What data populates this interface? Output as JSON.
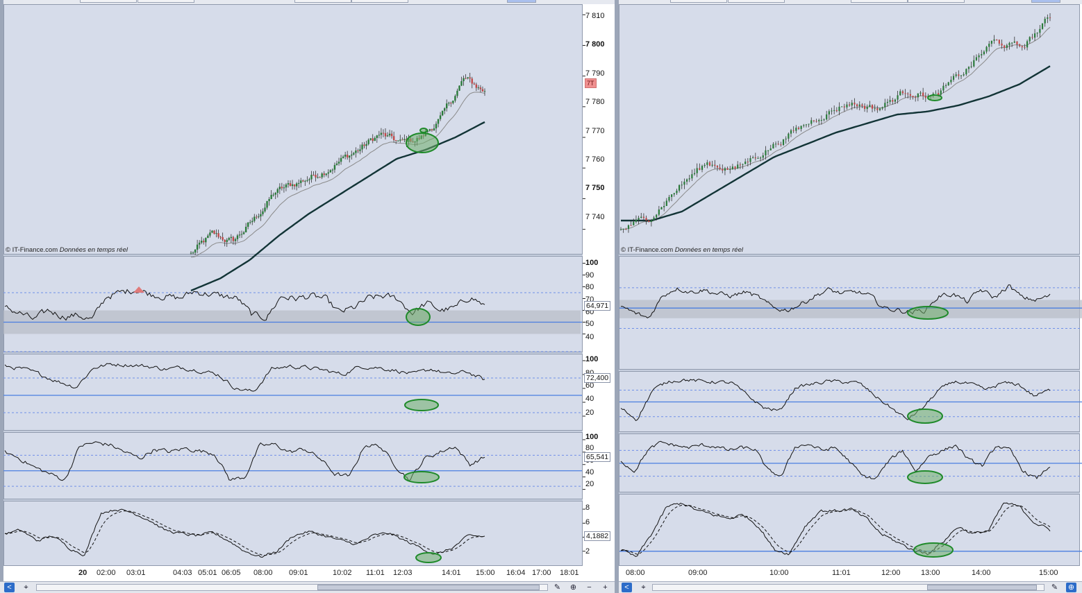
{
  "credit": {
    "brand": "© IT-Finance.com",
    "note": "Données en temps réel"
  },
  "left": {
    "price_axis": [
      "7 810",
      "7 800",
      "7 790",
      "7 780",
      "7 770",
      "7 760",
      "7 750",
      "7 740"
    ],
    "price_axis_bold": [
      "7 800",
      "7 750"
    ],
    "last_price_tag": "7T",
    "ind1_axis": [
      "100",
      "90",
      "80",
      "70",
      "60",
      "50",
      "40"
    ],
    "ind1_value": "64,971",
    "ind2_axis": [
      "100",
      "80",
      "60",
      "40",
      "20"
    ],
    "ind2_value": "72,400",
    "ind3_axis": [
      "100",
      "80",
      "60",
      "40",
      "20"
    ],
    "ind3_value": "65,541",
    "ind4_axis": [
      "8",
      "6",
      "4",
      "2"
    ],
    "ind4_value": "4,1882",
    "time_labels": [
      "20",
      "02:00",
      "03:01",
      "04:03",
      "05:01",
      "06:05",
      "08:00",
      "09:01",
      "10:02",
      "11:01",
      "12:03",
      "14:01",
      "15:00",
      "16:04",
      "17:00",
      "18:01"
    ],
    "time_bold": [
      "20"
    ]
  },
  "right": {
    "time_labels": [
      "08:00",
      "09:00",
      "10:00",
      "11:01",
      "12:00",
      "13:00",
      "14:00",
      "15:00"
    ]
  },
  "colors": {
    "panel_bg": "#d6dcea",
    "candle_up": "#2a7a3a",
    "candle_down": "#c04848",
    "ma_fast": "#8a8a8a",
    "ma_slow": "#123436",
    "oscillator": "#111111",
    "signal_dashed": "#111111",
    "level_line": "#4a7ee0",
    "level_dashed": "#6f8fe8",
    "zone_band": "#b8bcc6",
    "annotation_ellipse": "#1f8a2a",
    "annotation_fill": "#6fae6a"
  },
  "chart_data": [
    {
      "type": "candlestick",
      "panel": "left-price",
      "x": [
        "02:00",
        "03:01",
        "04:03",
        "05:01",
        "06:05",
        "08:00",
        "09:01",
        "10:02",
        "11:01",
        "12:03",
        "14:01",
        "15:00"
      ],
      "y_ticks": [
        7810,
        7800,
        7790,
        7780,
        7770,
        7760,
        7750,
        7740
      ],
      "ylim": [
        7732,
        7813
      ],
      "trend_close": [
        7732,
        7738,
        7736,
        7743,
        7752,
        7755,
        7758,
        7762,
        7766,
        7771,
        7768,
        7770,
        7777,
        7789,
        7785
      ],
      "series": [
        {
          "name": "ma_fast"
        },
        {
          "name": "ma_slow"
        }
      ]
    },
    {
      "type": "line",
      "panel": "left-oscillator-1",
      "y_ticks": [
        100,
        90,
        80,
        70,
        60,
        50,
        40
      ],
      "ylim": [
        25,
        105
      ],
      "levels": [
        50
      ],
      "dashed_levels": [
        75,
        25
      ],
      "band": [
        40,
        60
      ],
      "last": 64.971
    },
    {
      "type": "line",
      "panel": "left-oscillator-2",
      "y_ticks": [
        100,
        80,
        60,
        40,
        20
      ],
      "ylim": [
        0,
        108
      ],
      "levels": [
        50
      ],
      "dashed_levels": [
        75,
        25
      ],
      "last": 72.4
    },
    {
      "type": "line",
      "panel": "left-oscillator-3",
      "y_ticks": [
        100,
        80,
        60,
        40,
        20
      ],
      "ylim": [
        5,
        110
      ],
      "levels": [
        50
      ],
      "dashed_levels": [
        75,
        25
      ],
      "last": 65.541
    },
    {
      "type": "line",
      "panel": "left-oscillator-4",
      "y_ticks": [
        8,
        6,
        4,
        2
      ],
      "ylim": [
        0,
        9
      ],
      "series": [
        {
          "name": "main"
        },
        {
          "name": "signal"
        }
      ],
      "last": 4.1882
    },
    {
      "type": "candlestick",
      "panel": "right-price",
      "x": [
        "08:00",
        "09:00",
        "10:00",
        "11:01",
        "12:00",
        "13:00",
        "14:00",
        "15:00"
      ],
      "trend_close": [
        7738,
        7742,
        7752,
        7760,
        7758,
        7764,
        7770,
        7776,
        7780,
        7778,
        7784,
        7782,
        7790,
        7800,
        7798,
        7808
      ]
    }
  ]
}
